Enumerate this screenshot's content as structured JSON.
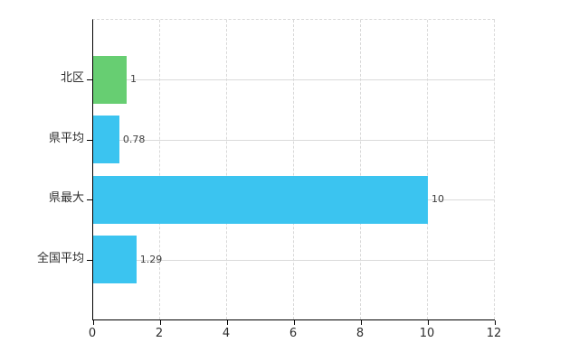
{
  "chart_data": {
    "type": "bar",
    "orientation": "horizontal",
    "title": "",
    "categories": [
      "北区",
      "県平均",
      "県最大",
      "全国平均"
    ],
    "values": [
      1,
      0.78,
      10,
      1.29
    ],
    "value_labels": [
      "1",
      "0.78",
      "10",
      "1.29"
    ],
    "series": [
      {
        "name": "値",
        "values": [
          1,
          0.78,
          10,
          1.29
        ]
      }
    ],
    "bar_colors": [
      "#67ce72",
      "#3bc4f0",
      "#3bc4f0",
      "#3bc4f0"
    ],
    "x_ticks": [
      0,
      2,
      4,
      6,
      8,
      10,
      12
    ],
    "x_tick_labels": [
      "0",
      "2",
      "4",
      "6",
      "8",
      "10",
      "12"
    ],
    "xlim": [
      0,
      12
    ],
    "xlabel": "",
    "ylabel": "",
    "grid": true,
    "legend_position": "none",
    "colors": {
      "axis": "#000000",
      "gridline_vertical": "#d9d9d9",
      "gridline_horizontal": "#dadada",
      "text": "#2e2e2e",
      "value_label_text": "#3d3d3d",
      "background": "#ffffff"
    }
  }
}
